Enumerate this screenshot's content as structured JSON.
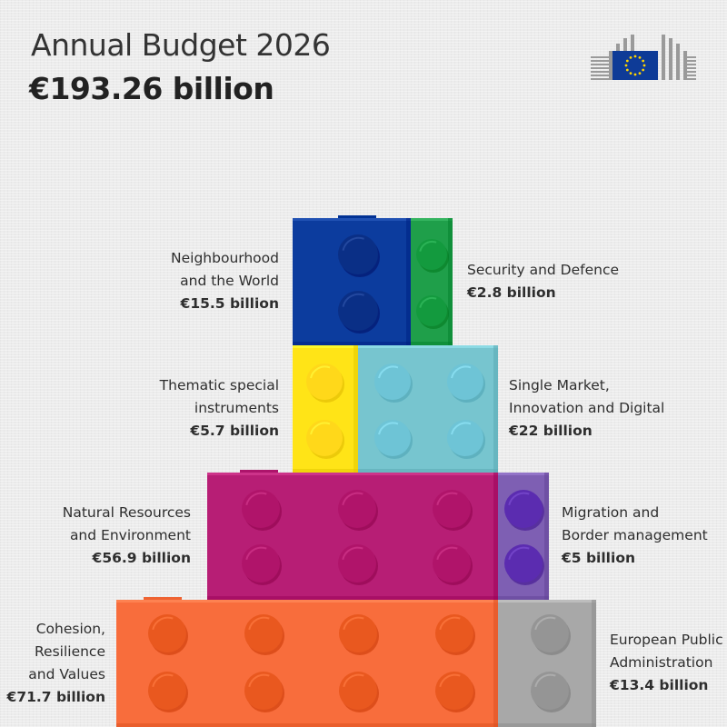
{
  "header": {
    "title": "Annual Budget 2026",
    "total": "€193.26 billion"
  },
  "logo": {
    "icon": "european-commission-logo",
    "flag_color": "#0e3b97",
    "star_color": "#ffd400"
  },
  "chart_data": {
    "type": "bar",
    "title": "Annual Budget 2026",
    "subtitle": "€193.26 billion",
    "unit": "€ billion",
    "total": 193.26,
    "rows": [
      {
        "row": 1,
        "segments": [
          {
            "name": "neighbourhood-and-the-world",
            "label_lines": [
              "Neighbourhood",
              "and the World"
            ],
            "amount": "€15.5 billion",
            "value": 15.5,
            "color": "#0c3c9e",
            "stud_color": "#0a2f86",
            "label_side": "left"
          },
          {
            "name": "security-and-defence",
            "label_lines": [
              "Security and Defence"
            ],
            "amount": "€2.8 billion",
            "value": 2.8,
            "color": "#1f9f4a",
            "stud_color": "#139a3e",
            "label_side": "right"
          }
        ]
      },
      {
        "row": 2,
        "segments": [
          {
            "name": "thematic-special-instruments",
            "label_lines": [
              "Thematic special",
              "instruments"
            ],
            "amount": "€5.7 billion",
            "value": 5.7,
            "color": "#ffe417",
            "stud_color": "#ffd81a",
            "label_side": "left"
          },
          {
            "name": "single-market-innovation-and-digital",
            "label_lines": [
              "Single Market,",
              "Innovation and Digital"
            ],
            "amount": "€22 billion",
            "value": 22,
            "color": "#77c5cf",
            "stud_color": "#6ec4d6",
            "label_side": "right"
          }
        ]
      },
      {
        "row": 3,
        "segments": [
          {
            "name": "natural-resources-and-environment",
            "label_lines": [
              "Natural Resources",
              "and Environment"
            ],
            "amount": "€56.9 billion",
            "value": 56.9,
            "color": "#b71e75",
            "stud_color": "#b0146a",
            "label_side": "left"
          },
          {
            "name": "migration-and-border-management",
            "label_lines": [
              "Migration and",
              "Border management"
            ],
            "amount": "€5 billion",
            "value": 5,
            "color": "#7e5fb3",
            "stud_color": "#5b2cb0",
            "label_side": "right"
          }
        ]
      },
      {
        "row": 4,
        "segments": [
          {
            "name": "cohesion-resilience-and-values",
            "label_lines": [
              "Cohesion,",
              "Resilience",
              "and Values"
            ],
            "amount": "€71.7 billion",
            "value": 71.7,
            "color": "#f86d3c",
            "stud_color": "#e9581f",
            "label_side": "left"
          },
          {
            "name": "european-public-administration",
            "label_lines": [
              "European Public",
              "Administration"
            ],
            "amount": "€13.4 billion",
            "value": 13.4,
            "color": "#a8a8a8",
            "stud_color": "#959595",
            "label_side": "right"
          }
        ]
      }
    ]
  }
}
